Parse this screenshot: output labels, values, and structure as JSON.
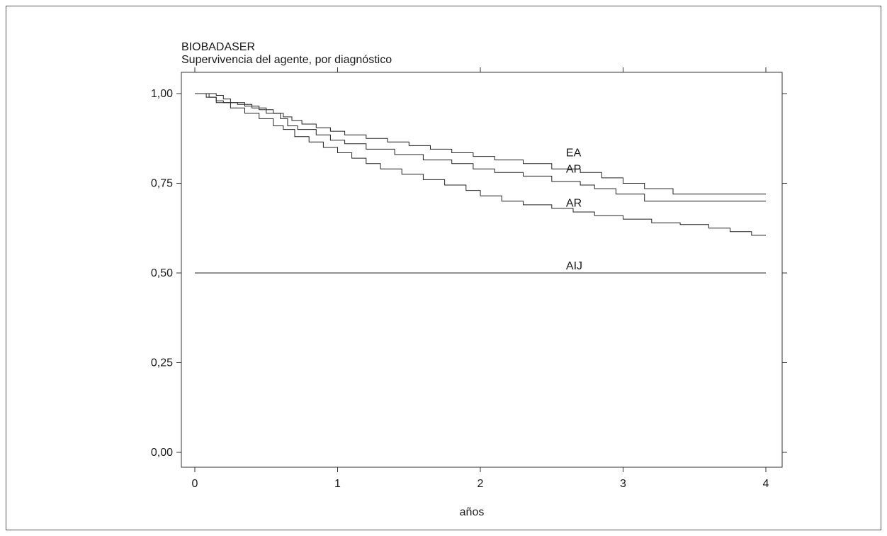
{
  "chart_data": {
    "type": "line",
    "title": "BIOBADASER",
    "subtitle": "Supervivencia del agente, por diagnóstico",
    "xlabel": "años",
    "ylabel": "",
    "xlim": [
      0,
      4
    ],
    "ylim": [
      0,
      1
    ],
    "x_ticks": [
      0,
      1,
      2,
      3,
      4
    ],
    "x_tick_labels": [
      "0",
      "1",
      "2",
      "3",
      "4"
    ],
    "y_ticks": [
      0,
      0.25,
      0.5,
      0.75,
      1.0
    ],
    "y_tick_labels": [
      "0,00",
      "0,25",
      "0,50",
      "0,75",
      "1,00"
    ],
    "grid": false,
    "legend": "inline labels",
    "series": [
      {
        "name": "EA",
        "step": true,
        "label_at": [
          2.6,
          0.825
        ],
        "x": [
          0,
          0.15,
          0.2,
          0.25,
          0.35,
          0.45,
          0.55,
          0.62,
          0.68,
          0.75,
          0.85,
          0.95,
          1.05,
          1.2,
          1.35,
          1.5,
          1.65,
          1.8,
          1.95,
          2.1,
          2.3,
          2.5,
          2.7,
          2.85,
          3.0,
          3.15,
          3.35,
          4.0
        ],
        "y": [
          1.0,
          0.995,
          0.985,
          0.975,
          0.965,
          0.955,
          0.945,
          0.935,
          0.925,
          0.915,
          0.905,
          0.895,
          0.885,
          0.875,
          0.865,
          0.855,
          0.845,
          0.835,
          0.825,
          0.815,
          0.805,
          0.79,
          0.78,
          0.765,
          0.75,
          0.735,
          0.72,
          0.72
        ]
      },
      {
        "name": "AP",
        "step": true,
        "label_at": [
          2.6,
          0.78
        ],
        "x": [
          0,
          0.1,
          0.15,
          0.2,
          0.3,
          0.4,
          0.5,
          0.6,
          0.65,
          0.72,
          0.85,
          0.95,
          1.05,
          1.2,
          1.4,
          1.6,
          1.8,
          1.95,
          2.1,
          2.3,
          2.5,
          2.7,
          2.8,
          2.95,
          3.15,
          4.0
        ],
        "y": [
          1.0,
          0.99,
          0.98,
          0.975,
          0.97,
          0.96,
          0.945,
          0.93,
          0.91,
          0.9,
          0.885,
          0.87,
          0.86,
          0.845,
          0.83,
          0.815,
          0.805,
          0.79,
          0.78,
          0.77,
          0.755,
          0.745,
          0.735,
          0.72,
          0.7,
          0.7
        ]
      },
      {
        "name": "AR",
        "step": true,
        "label_at": [
          2.6,
          0.685
        ],
        "x": [
          0,
          0.08,
          0.15,
          0.25,
          0.35,
          0.45,
          0.55,
          0.62,
          0.7,
          0.8,
          0.9,
          1.0,
          1.1,
          1.2,
          1.3,
          1.45,
          1.6,
          1.75,
          1.9,
          2.0,
          2.15,
          2.3,
          2.5,
          2.65,
          2.8,
          3.0,
          3.2,
          3.4,
          3.6,
          3.75,
          3.9,
          4.0
        ],
        "y": [
          1.0,
          0.99,
          0.975,
          0.96,
          0.945,
          0.93,
          0.91,
          0.9,
          0.88,
          0.865,
          0.85,
          0.835,
          0.82,
          0.805,
          0.79,
          0.775,
          0.76,
          0.745,
          0.73,
          0.715,
          0.7,
          0.69,
          0.68,
          0.67,
          0.66,
          0.65,
          0.64,
          0.635,
          0.625,
          0.615,
          0.605,
          0.605
        ]
      },
      {
        "name": "AIJ",
        "step": false,
        "label_at": [
          2.6,
          0.51
        ],
        "x": [
          0,
          4.0
        ],
        "y": [
          0.5,
          0.5
        ]
      }
    ]
  }
}
